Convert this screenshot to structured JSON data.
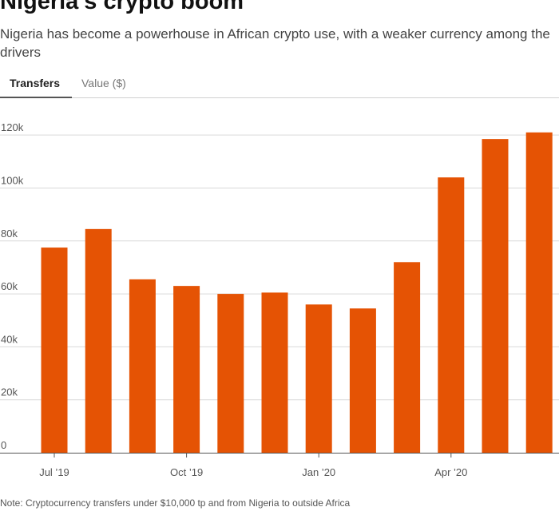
{
  "header": {
    "title": "Nigeria’s crypto boom",
    "subtitle": "Nigeria has become a powerhouse in African crypto use, with a weaker currency among the drivers"
  },
  "tabs": [
    {
      "label": "Transfers",
      "active": true
    },
    {
      "label": "Value ($)",
      "active": false
    }
  ],
  "footer": {
    "note": "Note: Cryptocurrency transfers under $10,000 tp and from Nigeria to outside Africa"
  },
  "colors": {
    "bar": "#e55304",
    "grid": "#d9d9d9",
    "axis": "#555555"
  },
  "chart_data": {
    "type": "bar",
    "title": "",
    "xlabel": "",
    "ylabel": "",
    "categories": [
      "Jul 2019",
      "Aug 2019",
      "Sep 2019",
      "Oct 2019",
      "Nov 2019",
      "Dec 2019",
      "Jan 2020",
      "Feb 2020",
      "Mar 2020",
      "Apr 2020",
      "May 2020",
      "Jun 2020"
    ],
    "values": [
      77500,
      84500,
      65500,
      63000,
      60000,
      60500,
      56000,
      54500,
      72000,
      104000,
      118500,
      121000
    ],
    "ylim": [
      0,
      130000
    ],
    "yticks": [
      {
        "value": 0,
        "label": "0"
      },
      {
        "value": 20000,
        "label": "20k"
      },
      {
        "value": 40000,
        "label": "40k"
      },
      {
        "value": 60000,
        "label": "60k"
      },
      {
        "value": 80000,
        "label": "80k"
      },
      {
        "value": 100000,
        "label": "100k"
      },
      {
        "value": 120000,
        "label": "120k"
      }
    ],
    "xticks": [
      {
        "category": "Jul 2019",
        "label": "Jul ’19"
      },
      {
        "category": "Oct 2019",
        "label": "Oct ’19"
      },
      {
        "category": "Jan 2020",
        "label": "Jan ’20"
      },
      {
        "category": "Apr 2020",
        "label": "Apr ’20"
      }
    ],
    "grid": true,
    "legend": "none"
  }
}
